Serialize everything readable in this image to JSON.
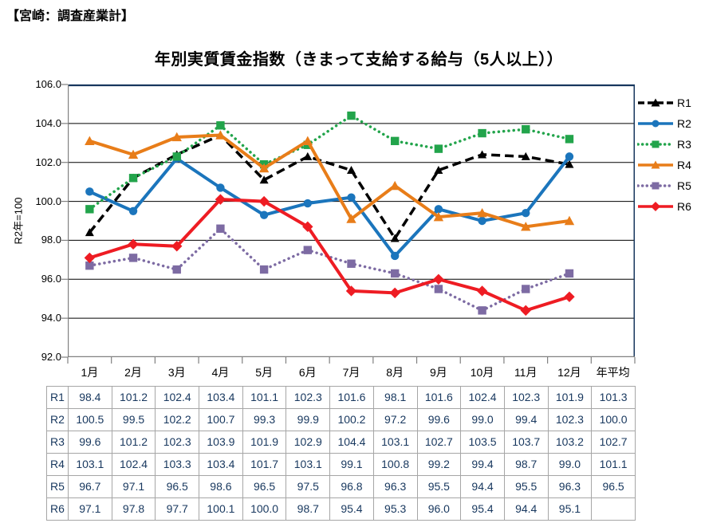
{
  "page": {
    "header": "【宮崎：調査産業計】"
  },
  "chart_data": {
    "type": "line",
    "title": "年別実質賃金指数（きまって支給する給与（5人以上））",
    "ylabel": "R2年=100",
    "xlabel": "",
    "ylim": [
      92.0,
      106.0
    ],
    "ytick_step": 2.0,
    "ytick_labels": [
      "106.0",
      "104.0",
      "102.0",
      "100.0",
      "98.0",
      "96.0",
      "94.0",
      "92.0"
    ],
    "grid": "horizontal",
    "legend_position": "right",
    "categories": [
      "1月",
      "2月",
      "3月",
      "4月",
      "5月",
      "6月",
      "7月",
      "8月",
      "9月",
      "10月",
      "11月",
      "12月",
      "年平均"
    ],
    "plotted_categories_count": 12,
    "series": [
      {
        "name": "R1",
        "color": "#000000",
        "line_style": "dashed",
        "marker": "triangle",
        "values": [
          98.4,
          101.2,
          102.4,
          103.4,
          101.1,
          102.3,
          101.6,
          98.1,
          101.6,
          102.4,
          102.3,
          101.9
        ],
        "annual_avg": "101.3"
      },
      {
        "name": "R2",
        "color": "#1B75BC",
        "line_style": "solid",
        "marker": "circle",
        "values": [
          100.5,
          99.5,
          102.2,
          100.7,
          99.3,
          99.9,
          100.2,
          97.2,
          99.6,
          99.0,
          99.4,
          102.3
        ],
        "annual_avg": "100.0"
      },
      {
        "name": "R3",
        "color": "#22A44B",
        "line_style": "dotted",
        "marker": "square",
        "values": [
          99.6,
          101.2,
          102.3,
          103.9,
          101.9,
          102.9,
          104.4,
          103.1,
          102.7,
          103.5,
          103.7,
          103.2
        ],
        "annual_avg": "102.7"
      },
      {
        "name": "R4",
        "color": "#E87D19",
        "line_style": "solid",
        "marker": "triangle",
        "values": [
          103.1,
          102.4,
          103.3,
          103.4,
          101.7,
          103.1,
          99.1,
          100.8,
          99.2,
          99.4,
          98.7,
          99.0
        ],
        "annual_avg": "101.1"
      },
      {
        "name": "R5",
        "color": "#7D6BA3",
        "line_style": "dotted",
        "marker": "square",
        "values": [
          96.7,
          97.1,
          96.5,
          98.6,
          96.5,
          97.5,
          96.8,
          96.3,
          95.5,
          94.4,
          95.5,
          96.3
        ],
        "annual_avg": "96.5"
      },
      {
        "name": "R6",
        "color": "#EE1C23",
        "line_style": "solid",
        "marker": "diamond",
        "values": [
          97.1,
          97.8,
          97.7,
          100.1,
          100.0,
          98.7,
          95.4,
          95.3,
          96.0,
          95.4,
          94.4,
          95.1
        ],
        "annual_avg": ""
      }
    ],
    "colors": {
      "plot_border": "#17375E",
      "axis_line": "#808080",
      "gridline": "#000000",
      "table_border": "#A6A6A6",
      "table_text": "#17375E"
    }
  }
}
